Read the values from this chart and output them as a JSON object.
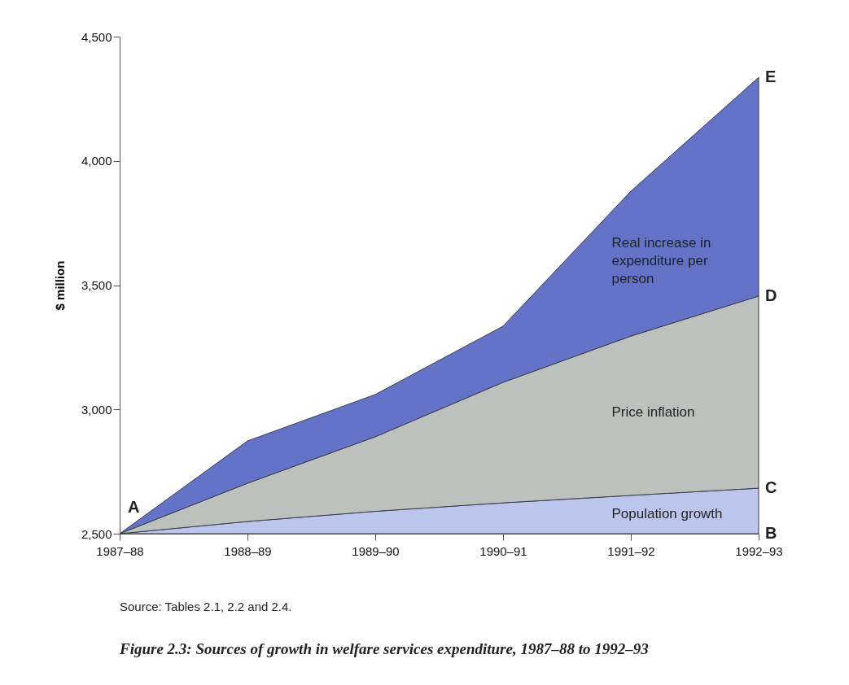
{
  "chart_data": {
    "type": "area",
    "title": "Figure 2.3: Sources of growth in welfare services expenditure, 1987–88 to 1992–93",
    "ylabel": "$ million",
    "categories": [
      "1987–88",
      "1988–89",
      "1989–90",
      "1990–91",
      "1991–92",
      "1992–93"
    ],
    "series": [
      {
        "name": "Population growth",
        "color": "#bcc6ec",
        "values": [
          2500,
          2549,
          2590,
          2624,
          2654,
          2683
        ]
      },
      {
        "name": "Price inflation",
        "color": "#bcc1bd",
        "values": [
          2500,
          2703,
          2890,
          3109,
          3295,
          3456
        ]
      },
      {
        "name": "Real increase in expenditure per person",
        "color": "#6473c8",
        "values": [
          2500,
          2873,
          3060,
          3335,
          3878,
          4336
        ]
      }
    ],
    "ylim": [
      2500,
      4500
    ],
    "yticks": [
      {
        "value": 2500,
        "label": "2,500"
      },
      {
        "value": 3000,
        "label": "3,000"
      },
      {
        "value": 3500,
        "label": "3,500"
      },
      {
        "value": 4000,
        "label": "4,000"
      },
      {
        "value": 4500,
        "label": "4,500"
      }
    ],
    "annotations": [
      {
        "text": "A",
        "x": "1987–88",
        "y": 2500
      },
      {
        "text": "B",
        "x": "1992–93",
        "y": 2500
      },
      {
        "text": "C",
        "x": "1992–93",
        "y": 2683
      },
      {
        "text": "D",
        "x": "1992–93",
        "y": 3456
      },
      {
        "text": "E",
        "x": "1992–93",
        "y": 4336
      },
      "Source: Tables 2.1, 2.2 and 2.4."
    ]
  }
}
